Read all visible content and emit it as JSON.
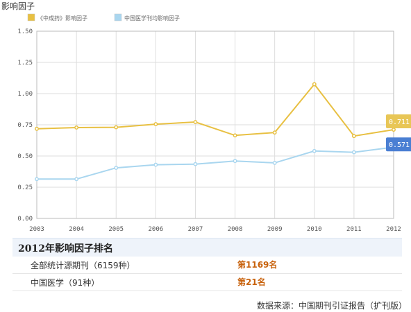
{
  "page": {
    "title": "影响因子"
  },
  "chart_data": {
    "type": "line",
    "categories": [
      "2003",
      "2004",
      "2005",
      "2006",
      "2007",
      "2008",
      "2009",
      "2010",
      "2011",
      "2012"
    ],
    "ylim": [
      0,
      1.5
    ],
    "yticks": [
      "0.00",
      "0.25",
      "0.50",
      "0.75",
      "1.00",
      "1.25",
      "1.50"
    ],
    "grid": true,
    "legend_position": "top-left",
    "series": [
      {
        "name": "《中成药》影响因子",
        "color": "#e8c042",
        "values": [
          0.718,
          0.728,
          0.73,
          0.755,
          0.772,
          0.665,
          0.688,
          1.075,
          0.66,
          0.711
        ]
      },
      {
        "name": "中国医学刊均影响因子",
        "color": "#a9d6ef",
        "values": [
          0.315,
          0.315,
          0.405,
          0.43,
          0.435,
          0.46,
          0.445,
          0.54,
          0.53,
          0.571
        ]
      }
    ],
    "end_labels": [
      {
        "text": "0.711",
        "bg": "#e8c656"
      },
      {
        "text": "0.571",
        "bg": "#4a7fd3"
      }
    ]
  },
  "ranking": {
    "title": "2012年影响因子排名",
    "rows": [
      {
        "label": "全部统计源期刊（6159种）",
        "value": "第1169名"
      },
      {
        "label": "中国医学（91种）",
        "value": "第21名"
      }
    ]
  },
  "footer": {
    "source": "数据来源：中国期刊引证报告（扩刊版）"
  }
}
